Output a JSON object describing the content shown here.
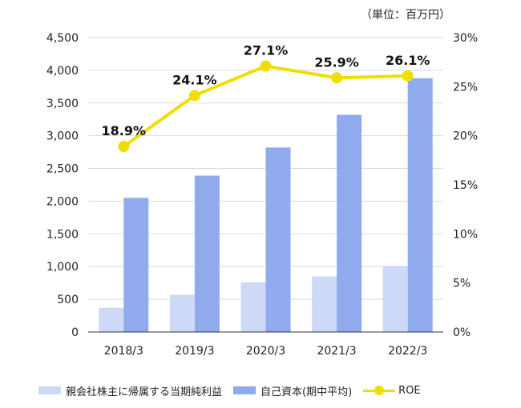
{
  "unit_label": "（単位：百万円）",
  "colors": {
    "net_income": "#cdd9f7",
    "equity": "#8fabee",
    "roe": "#f0de00",
    "axis": "#333333",
    "grid": "#d9d9d9",
    "text": "#222222"
  },
  "legend": {
    "net_income": "親会社株主に帰属する当期純利益",
    "equity": "自己資本(期中平均)",
    "roe": "ROE"
  },
  "chart_data": {
    "type": "bar",
    "categories": [
      "2018/3",
      "2019/3",
      "2020/3",
      "2021/3",
      "2022/3"
    ],
    "series": [
      {
        "name": "親会社株主に帰属する当期純利益",
        "type": "bar",
        "axis": "left",
        "values": [
          370,
          570,
          760,
          850,
          1010
        ]
      },
      {
        "name": "自己資本(期中平均)",
        "type": "bar",
        "axis": "left",
        "values": [
          2050,
          2390,
          2820,
          3320,
          3880
        ]
      },
      {
        "name": "ROE",
        "type": "line",
        "axis": "right",
        "values": [
          18.9,
          24.1,
          27.1,
          25.9,
          26.1
        ],
        "labels": [
          "18.9%",
          "24.1%",
          "27.1%",
          "25.9%",
          "26.1%"
        ]
      }
    ],
    "y_left": {
      "min": 0,
      "max": 4500,
      "step": 500,
      "ticks": [
        "0",
        "500",
        "1,000",
        "1,500",
        "2,000",
        "2,500",
        "3,000",
        "3,500",
        "4,000",
        "4,500"
      ]
    },
    "y_right": {
      "min": 0,
      "max": 30,
      "step": 5,
      "ticks": [
        "0%",
        "5%",
        "10%",
        "15%",
        "20%",
        "25%",
        "30%"
      ]
    },
    "grid": true,
    "legend_position": "bottom"
  }
}
